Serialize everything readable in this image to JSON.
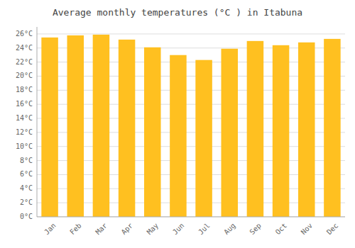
{
  "chart_data": {
    "type": "bar",
    "title": "Average monthly temperatures (°C ) in Itabuna",
    "categories": [
      "Jan",
      "Feb",
      "Mar",
      "Apr",
      "May",
      "Jun",
      "Jul",
      "Aug",
      "Sep",
      "Oct",
      "Nov",
      "Dec"
    ],
    "values": [
      25.5,
      25.8,
      25.9,
      25.2,
      24.1,
      23.0,
      22.3,
      23.9,
      25.0,
      24.4,
      24.8,
      25.3
    ],
    "color": "#FFC020",
    "ylim": [
      0,
      27
    ],
    "yticks": [
      {
        "value": 0,
        "label": "0°C"
      },
      {
        "value": 2,
        "label": "2°C"
      },
      {
        "value": 4,
        "label": "4°C"
      },
      {
        "value": 6,
        "label": "6°C"
      },
      {
        "value": 8,
        "label": "8°C"
      },
      {
        "value": 10,
        "label": "10°C"
      },
      {
        "value": 12,
        "label": "12°C"
      },
      {
        "value": 14,
        "label": "14°C"
      },
      {
        "value": 16,
        "label": "16°C"
      },
      {
        "value": 18,
        "label": "18°C"
      },
      {
        "value": 20,
        "label": "20°C"
      },
      {
        "value": 22,
        "label": "22°C"
      },
      {
        "value": 24,
        "label": "24°C"
      },
      {
        "value": 26,
        "label": "26°C"
      }
    ],
    "grid": true
  }
}
